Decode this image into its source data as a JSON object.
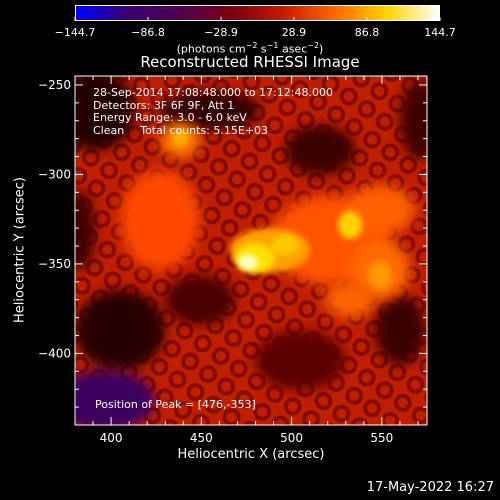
{
  "colorbar": {
    "ticks": [
      "−144.7",
      "−86.8",
      "−28.9",
      "28.9",
      "86.8",
      "144.7"
    ],
    "tick_values": [
      -144.7,
      -86.8,
      -28.9,
      28.9,
      86.8,
      144.7
    ],
    "range": [
      -144.7,
      144.7
    ],
    "units_prefix": "(photons cm",
    "units_exp1": "−2",
    "units_mid": " s",
    "units_exp2": "−1",
    "units_suffix": " asec",
    "units_exp3": "−2",
    "units_end": ")",
    "colors": [
      "#0000ff",
      "#3a0070",
      "#500050",
      "#7a0010",
      "#c81a00",
      "#ff6a00",
      "#ffd400",
      "#ffffff"
    ]
  },
  "plot": {
    "title": "Reconstructed RHESSI Image",
    "xlabel": "Heliocentric X (arcsec)",
    "ylabel": "Heliocentric Y (arcsec)",
    "x_ticks": [
      "400",
      "450",
      "500",
      "550"
    ],
    "x_tick_values": [
      400,
      450,
      500,
      550
    ],
    "y_ticks": [
      "−250",
      "−300",
      "−350",
      "−400"
    ],
    "y_tick_values": [
      -250,
      -300,
      -350,
      -400
    ],
    "xlim": [
      380,
      575
    ],
    "ylim": [
      -440,
      -245
    ],
    "peak": {
      "x": 476,
      "y": -353
    }
  },
  "annotations": {
    "time_range": "28-Sep-2014 17:08:48.000 to 17:12:48.000",
    "detectors": "Detectors: 3F 6F 9F, Att 1",
    "energy": "Energy Range: 3.0 - 6.0 keV",
    "algorithm": "Clean",
    "counts": "Total counts: 5.15E+03",
    "peak_label": "Position of Peak = [476,-353]"
  },
  "footer": {
    "date": "17-May-2022 16:27"
  }
}
